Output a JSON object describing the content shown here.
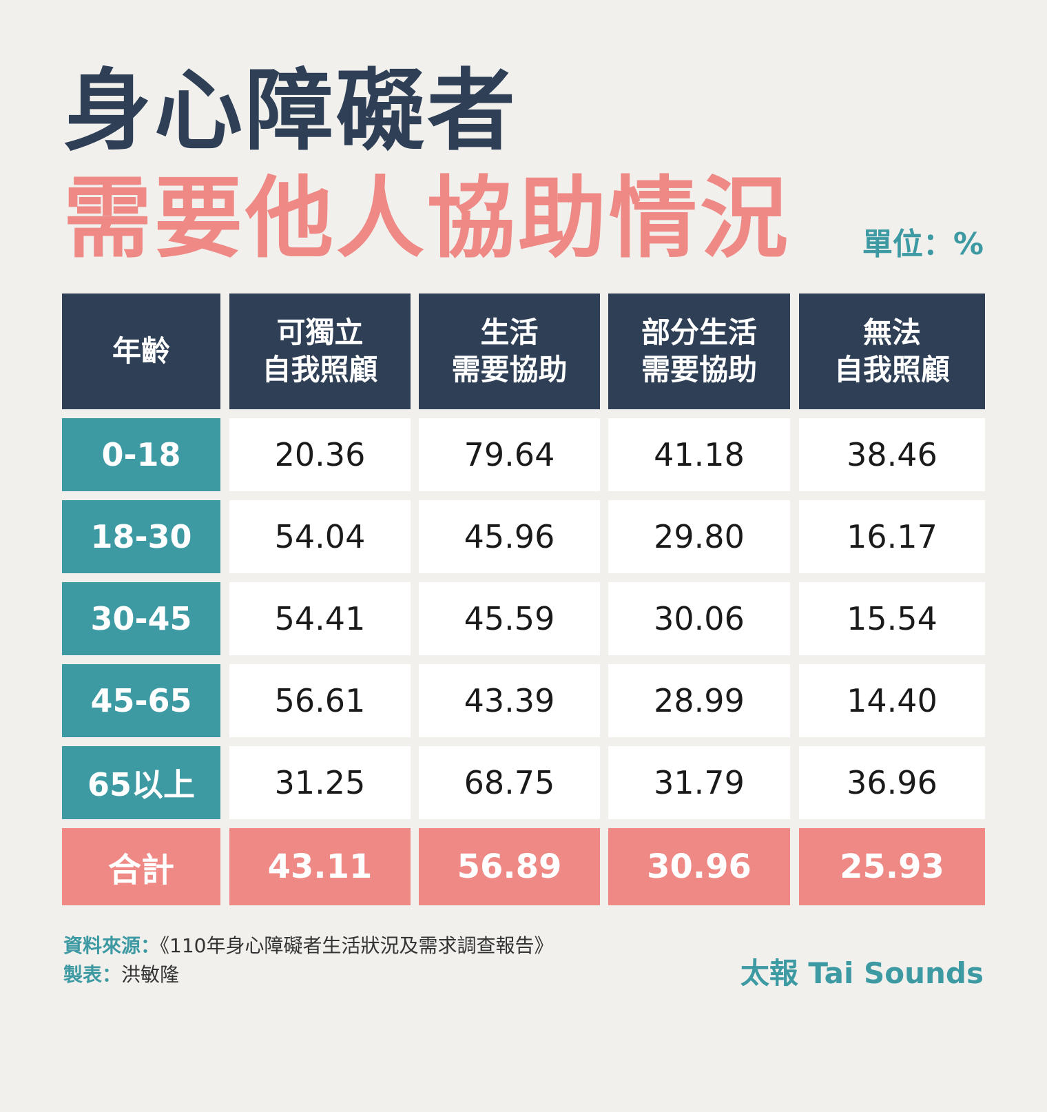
{
  "title_line1": "身心障礙者",
  "title_line2": "需要他人協助情況",
  "unit": "單位：%",
  "chart_data": {
    "type": "table",
    "columns": [
      [
        "年齡"
      ],
      [
        "可獨立",
        "自我照顧"
      ],
      [
        "生活",
        "需要協助"
      ],
      [
        "部分生活",
        "需要協助"
      ],
      [
        "無法",
        "自我照顧"
      ]
    ],
    "rows": [
      {
        "age": "0-18",
        "values": [
          "20.36",
          "79.64",
          "41.18",
          "38.46"
        ]
      },
      {
        "age": "18-30",
        "values": [
          "54.04",
          "45.96",
          "29.80",
          "16.17"
        ]
      },
      {
        "age": "30-45",
        "values": [
          "54.41",
          "45.59",
          "30.06",
          "15.54"
        ]
      },
      {
        "age": "45-65",
        "values": [
          "56.61",
          "43.39",
          "28.99",
          "14.40"
        ]
      },
      {
        "age": "65以上",
        "values": [
          "31.25",
          "68.75",
          "31.79",
          "36.96"
        ]
      }
    ],
    "total": {
      "label": "合計",
      "values": [
        "43.11",
        "56.89",
        "30.96",
        "25.93"
      ]
    }
  },
  "footer": {
    "source_label": "資料來源：",
    "source_text": "《110年身心障礙者生活狀況及需求調查報告》",
    "maker_label": "製表：",
    "maker_text": "洪敏隆"
  },
  "brand": "太報 Tai Sounds",
  "colors": {
    "navy": "#2e3f56",
    "teal": "#3d9aa3",
    "coral": "#ee8985",
    "background": "#f1f0ed"
  }
}
